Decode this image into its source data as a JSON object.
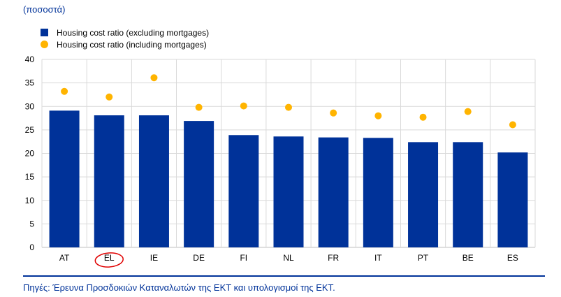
{
  "units_label": "(ποσοστά)",
  "source_note": "Πηγές: Έρευνα Προσδοκιών Καταναλωτών της ΕΚΤ και υπολογισμοί της ΕΚΤ.",
  "colors": {
    "bar": "#003299",
    "dot": "#ffb400",
    "grid": "#d9d9d9",
    "annotation": "#e00000"
  },
  "chart_data": {
    "type": "bar",
    "categories": [
      "AT",
      "EL",
      "IE",
      "DE",
      "FI",
      "NL",
      "FR",
      "IT",
      "PT",
      "BE",
      "ES"
    ],
    "series": [
      {
        "name": "Housing cost ratio (excluding mortgages)",
        "kind": "bar",
        "values": [
          29.1,
          28.1,
          28.1,
          26.9,
          23.9,
          23.6,
          23.4,
          23.3,
          22.4,
          22.4,
          20.2
        ]
      },
      {
        "name": "Housing cost ratio (including mortgages)",
        "kind": "dot",
        "values": [
          33.2,
          32.0,
          36.1,
          29.8,
          30.1,
          29.8,
          28.6,
          28.0,
          27.7,
          28.9,
          26.1
        ]
      }
    ],
    "ylim": [
      0,
      40
    ],
    "yticks": [
      0,
      5,
      10,
      15,
      20,
      25,
      30,
      35,
      40
    ],
    "grid": true,
    "legend_position": "top-left",
    "highlighted_category": "EL"
  }
}
